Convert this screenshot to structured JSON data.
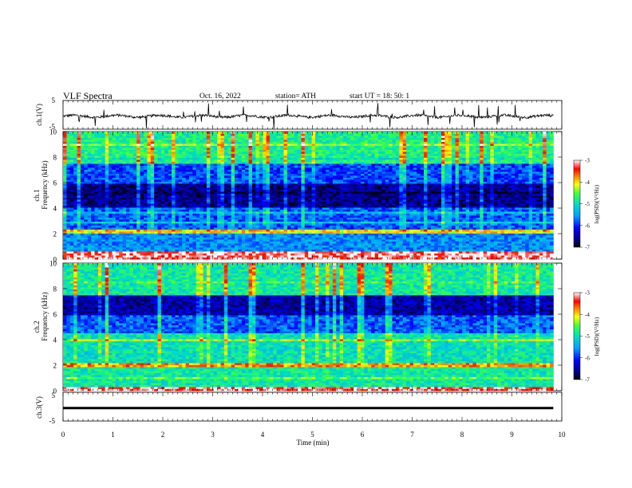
{
  "header": {
    "title": "VLF  Spectra",
    "date": "Oct. 16, 2022",
    "station": "station= ATH",
    "start": "start  UT  =    18: 50: 1"
  },
  "chart_data": [
    {
      "type": "line",
      "ylabel": "ch.1(V)",
      "xlim": [
        0,
        10
      ],
      "ylim": [
        -5,
        5
      ],
      "yticks": [
        "5",
        "-5"
      ],
      "description_values": "noisy waveform near y = -0.5 with impulsive spikes",
      "baseline": -0.5,
      "line_color": "#000000"
    },
    {
      "type": "heatmap",
      "ylabel_top": "ch.1",
      "ylabel": "Frequency (kHz)",
      "xlim": [
        0,
        9.83
      ],
      "ylim": [
        0,
        10
      ],
      "yticks": [
        "0",
        "2",
        "4",
        "6",
        "8",
        "10"
      ],
      "colorbar": {
        "label": "log(PSD)(V²/Hz)",
        "range": [
          -7,
          -3
        ],
        "ticks": [
          "-3",
          "-4",
          "-5",
          "-6",
          "-7"
        ]
      },
      "band_levels_log_psd": [
        {
          "f": [
            0.0,
            0.6
          ],
          "level": -3.2
        },
        {
          "f": [
            0.6,
            2.0
          ],
          "level": -5.6
        },
        {
          "f": [
            2.0,
            2.3
          ],
          "level": -4.0
        },
        {
          "f": [
            2.3,
            4.0
          ],
          "level": -5.8
        },
        {
          "f": [
            4.0,
            6.0
          ],
          "level": -6.6
        },
        {
          "f": [
            6.0,
            7.5
          ],
          "level": -5.9
        },
        {
          "f": [
            7.5,
            10.0
          ],
          "level": -4.8
        }
      ]
    },
    {
      "type": "heatmap",
      "ylabel_top": "ch.2",
      "ylabel": "Frequency (kHz)",
      "xlim": [
        0,
        9.83
      ],
      "ylim": [
        0,
        10
      ],
      "yticks": [
        "0",
        "2",
        "4",
        "6",
        "8",
        "10"
      ],
      "colorbar": {
        "label": "log(PSD)(V²/Hz)",
        "range": [
          -7,
          -3
        ],
        "ticks": [
          "-3",
          "-4",
          "-5",
          "-6",
          "-7"
        ]
      },
      "band_levels_log_psd": [
        {
          "f": [
            0.0,
            0.3
          ],
          "level": -3.2
        },
        {
          "f": [
            0.3,
            1.8
          ],
          "level": -4.9
        },
        {
          "f": [
            1.8,
            2.2
          ],
          "level": -3.8
        },
        {
          "f": [
            2.2,
            4.5
          ],
          "level": -5.0
        },
        {
          "f": [
            4.5,
            6.0
          ],
          "level": -5.8
        },
        {
          "f": [
            6.0,
            7.5
          ],
          "level": -6.5
        },
        {
          "f": [
            7.5,
            10.0
          ],
          "level": -4.9
        }
      ]
    },
    {
      "type": "line",
      "ylabel": "ch.3(V)",
      "xlabel": "Time  (min)",
      "xlim": [
        0,
        10
      ],
      "ylim": [
        -5,
        5
      ],
      "yticks": [
        "5",
        "-5"
      ],
      "xticks": [
        "0",
        "1",
        "2",
        "3",
        "4",
        "5",
        "6",
        "7",
        "8",
        "9",
        "10"
      ],
      "baseline": -0.5,
      "line_color": "#000000"
    }
  ]
}
